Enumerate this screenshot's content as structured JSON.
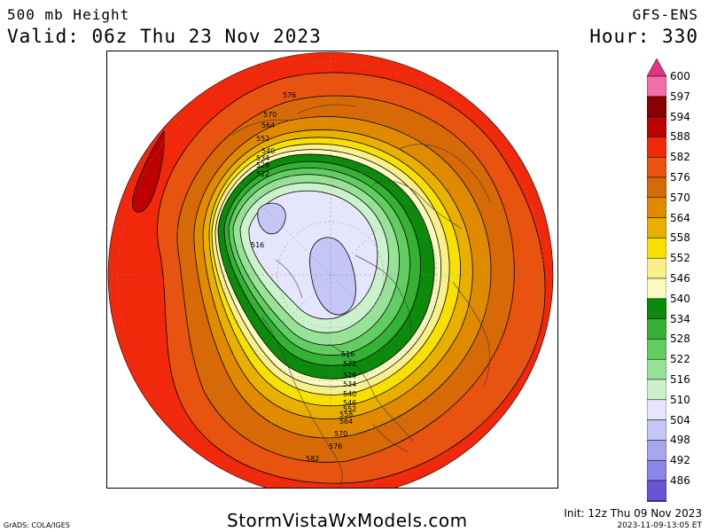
{
  "header": {
    "title": "500 mb Height",
    "valid": "Valid: 06z Thu 23 Nov 2023",
    "model": "GFS-ENS",
    "hour": "Hour: 330"
  },
  "footer": {
    "site": "StormVistaWxModels.com",
    "credit": "GrADS: COLA/IGES",
    "init": "Init: 12z Thu 09 Nov 2023",
    "stamp": "2023-11-09-13:05 ET"
  },
  "legend": {
    "levels": [
      "600",
      "597",
      "594",
      "588",
      "582",
      "576",
      "570",
      "564",
      "558",
      "552",
      "546",
      "540",
      "534",
      "528",
      "522",
      "516",
      "510",
      "504",
      "498",
      "492",
      "486"
    ],
    "colors": [
      "#f46fa8",
      "#8b0000",
      "#bd0000",
      "#f2280a",
      "#e85310",
      "#d76a06",
      "#e08a00",
      "#e9b000",
      "#f8e100",
      "#faf08a",
      "#fbfac0",
      "#0c8a0c",
      "#35b235",
      "#62ce62",
      "#98e298",
      "#ccf2cc",
      "#e5e5fb",
      "#c6c6f6",
      "#a7a7ef",
      "#8a85e6",
      "#6656d4",
      "#3c26b0"
    ],
    "top_color": "#e1338a",
    "bottom_color": "#2a0a9a"
  },
  "map": {
    "contour_labels": [
      {
        "text": "576"
      },
      {
        "text": "570"
      },
      {
        "text": "564"
      },
      {
        "text": "552"
      },
      {
        "text": "540"
      },
      {
        "text": "534"
      },
      {
        "text": "528"
      },
      {
        "text": "522"
      },
      {
        "text": "516"
      },
      {
        "text": "516"
      },
      {
        "text": "522"
      },
      {
        "text": "528"
      },
      {
        "text": "534"
      },
      {
        "text": "540"
      },
      {
        "text": "546"
      },
      {
        "text": "552"
      },
      {
        "text": "558"
      },
      {
        "text": "564"
      },
      {
        "text": "570"
      },
      {
        "text": "576"
      },
      {
        "text": "582"
      }
    ]
  }
}
